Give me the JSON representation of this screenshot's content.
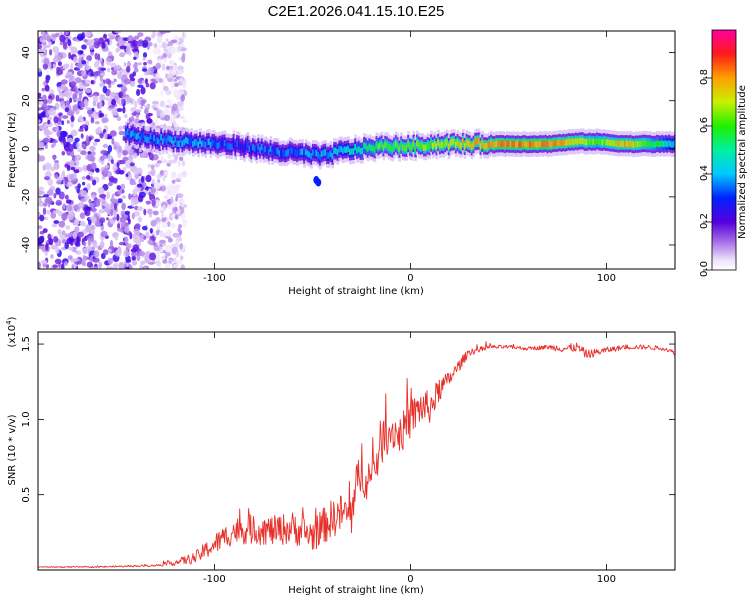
{
  "figure": {
    "title": "C2E1.2026.041.15.10.E25"
  },
  "chart_data": [
    {
      "type": "heatmap",
      "title": "C2E1.2026.041.15.10.E25",
      "xlabel": "Height of straight line (km)",
      "ylabel": "Frequency (Hz)",
      "xlim": [
        -190,
        135
      ],
      "ylim": [
        -50,
        49
      ],
      "xticks": [
        -100,
        0,
        100
      ],
      "yticks": [
        -40,
        -20,
        0,
        20,
        40
      ],
      "noise_region": {
        "x_range": [
          -190,
          -115
        ],
        "y_range": [
          -50,
          49
        ]
      },
      "ridge": {
        "x": [
          -145,
          -130,
          -115,
          -100,
          -85,
          -70,
          -55,
          -45,
          -35,
          -25,
          -15,
          0,
          15,
          30,
          50,
          70,
          85,
          95,
          110,
          135
        ],
        "y": [
          6,
          4,
          3,
          2,
          1,
          -1,
          -2,
          -3,
          -1,
          0,
          1,
          1,
          2,
          2,
          2,
          2,
          3,
          3,
          2,
          2
        ],
        "amplitude": [
          0.45,
          0.42,
          0.45,
          0.4,
          0.35,
          0.4,
          0.42,
          0.45,
          0.5,
          0.6,
          0.7,
          0.75,
          0.8,
          0.9,
          0.95,
          0.95,
          0.85,
          0.7,
          0.9,
          0.5
        ]
      },
      "outliers": [
        {
          "x": -48,
          "y": -13
        },
        {
          "x": -47,
          "y": -14
        }
      ],
      "colorbar": {
        "label": "Normalized spectral amplitude",
        "range": [
          0,
          1
        ],
        "ticks": [
          0.0,
          0.2,
          0.4,
          0.6,
          0.8
        ],
        "tick_labels": [
          "0.0",
          "0.2",
          "0.4",
          "0.6",
          "0.8"
        ]
      }
    },
    {
      "type": "line",
      "xlabel": "Height of straight line (km)",
      "ylabel": "SNR (10 * v/v)",
      "multiplier_label": "(x10",
      "multiplier_exp": "4",
      "multiplier_close": ")",
      "xlim": [
        -190,
        135
      ],
      "ylim": [
        0,
        1.58
      ],
      "xticks": [
        -100,
        0,
        100
      ],
      "yticks": [
        0.5,
        1.0,
        1.5
      ],
      "ytick_labels": [
        "0.5",
        "1.0",
        "1.5"
      ],
      "color": "#e8302a",
      "x": [
        -190,
        -160,
        -130,
        -120,
        -110,
        -100,
        -90,
        -80,
        -70,
        -60,
        -50,
        -40,
        -35,
        -30,
        -25,
        -20,
        -15,
        -10,
        -5,
        0,
        5,
        10,
        15,
        20,
        25,
        30,
        35,
        40,
        50,
        60,
        70,
        80,
        85,
        90,
        100,
        110,
        120,
        130,
        135
      ],
      "y": [
        0.02,
        0.02,
        0.03,
        0.05,
        0.08,
        0.17,
        0.26,
        0.27,
        0.26,
        0.28,
        0.23,
        0.34,
        0.38,
        0.36,
        0.7,
        0.58,
        0.85,
        0.93,
        0.9,
        1.0,
        1.08,
        1.08,
        1.2,
        1.27,
        1.36,
        1.45,
        1.46,
        1.48,
        1.48,
        1.47,
        1.48,
        1.47,
        1.48,
        1.43,
        1.46,
        1.48,
        1.48,
        1.47,
        1.44
      ],
      "noise": [
        0.003,
        0.004,
        0.006,
        0.02,
        0.04,
        0.07,
        0.09,
        0.1,
        0.1,
        0.11,
        0.11,
        0.13,
        0.13,
        0.14,
        0.2,
        0.15,
        0.16,
        0.13,
        0.13,
        0.13,
        0.12,
        0.11,
        0.08,
        0.05,
        0.04,
        0.025,
        0.02,
        0.015,
        0.012,
        0.012,
        0.015,
        0.03,
        0.03,
        0.03,
        0.02,
        0.015,
        0.015,
        0.015,
        0.015
      ]
    }
  ]
}
